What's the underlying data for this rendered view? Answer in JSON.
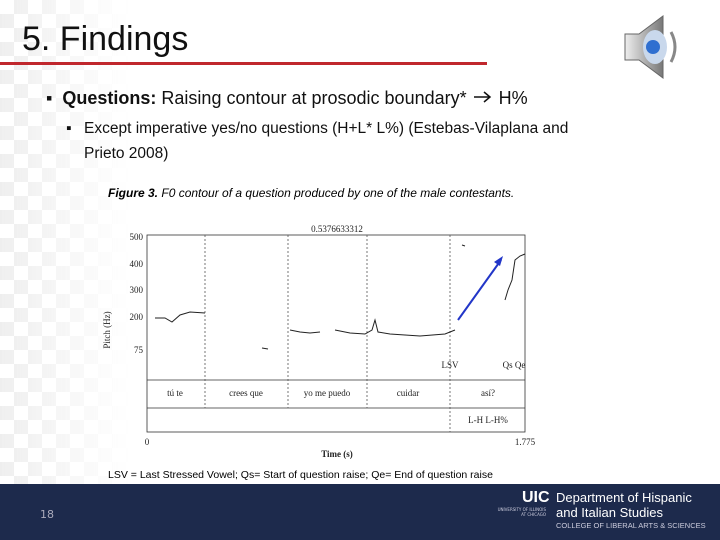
{
  "header": {
    "title": "5. Findings"
  },
  "bullets": [
    {
      "label": "Questions:",
      "text": "Raising contour at prosodic boundary*",
      "arrow_text": "H%",
      "sub_bullets": [
        "Except imperative yes/no questions (H+L* L%) (Estebas-Vilaplana and",
        "Prieto 2008)"
      ]
    }
  ],
  "figure": {
    "caption_label": "Figure 3.",
    "caption": "F0 contour of a question produced by one of the male contestants.",
    "top_label": "0.5376633312",
    "y_axis_title": "Pitch (Hz)",
    "y_tick_labels": [
      "500",
      "400",
      "300",
      "200",
      "75"
    ],
    "x_axis_title": "Time (s)",
    "x_tick_labels": [
      "0",
      "1.775"
    ],
    "annotations": [
      "LSV",
      "Qs Qe"
    ],
    "words": [
      "tú te",
      "crees que",
      "yo me puedo",
      "cuidar",
      "así?"
    ],
    "tones": "L-H L-H%"
  },
  "footnote": "LSV = Last Stressed Vowel; Qs= Start of question raise; Qe= End of question raise",
  "footer": {
    "page_number": "18",
    "logo_mark": "UIC",
    "university": "UNIVERSITY OF ILLINOIS AT CHICAGO",
    "department_line1": "Department of Hispanic",
    "department_line2": "and Italian Studies",
    "college": "COLLEGE OF LIBERAL ARTS & SCIENCES"
  }
}
